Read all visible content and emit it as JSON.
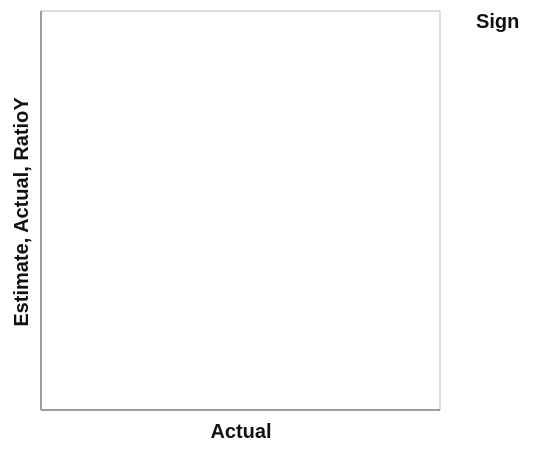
{
  "chart_data": {
    "type": "scatter",
    "title": "",
    "xlabel": "Actual",
    "ylabel": "Estimate, Actual, RatioY",
    "legend_title": "Sign",
    "legend_position": "top-right",
    "series": [],
    "grid": false,
    "colors": {
      "frame": "#d3d3d3",
      "axis": "#7f7f7f",
      "text": "#111111",
      "background": "#ffffff"
    }
  }
}
